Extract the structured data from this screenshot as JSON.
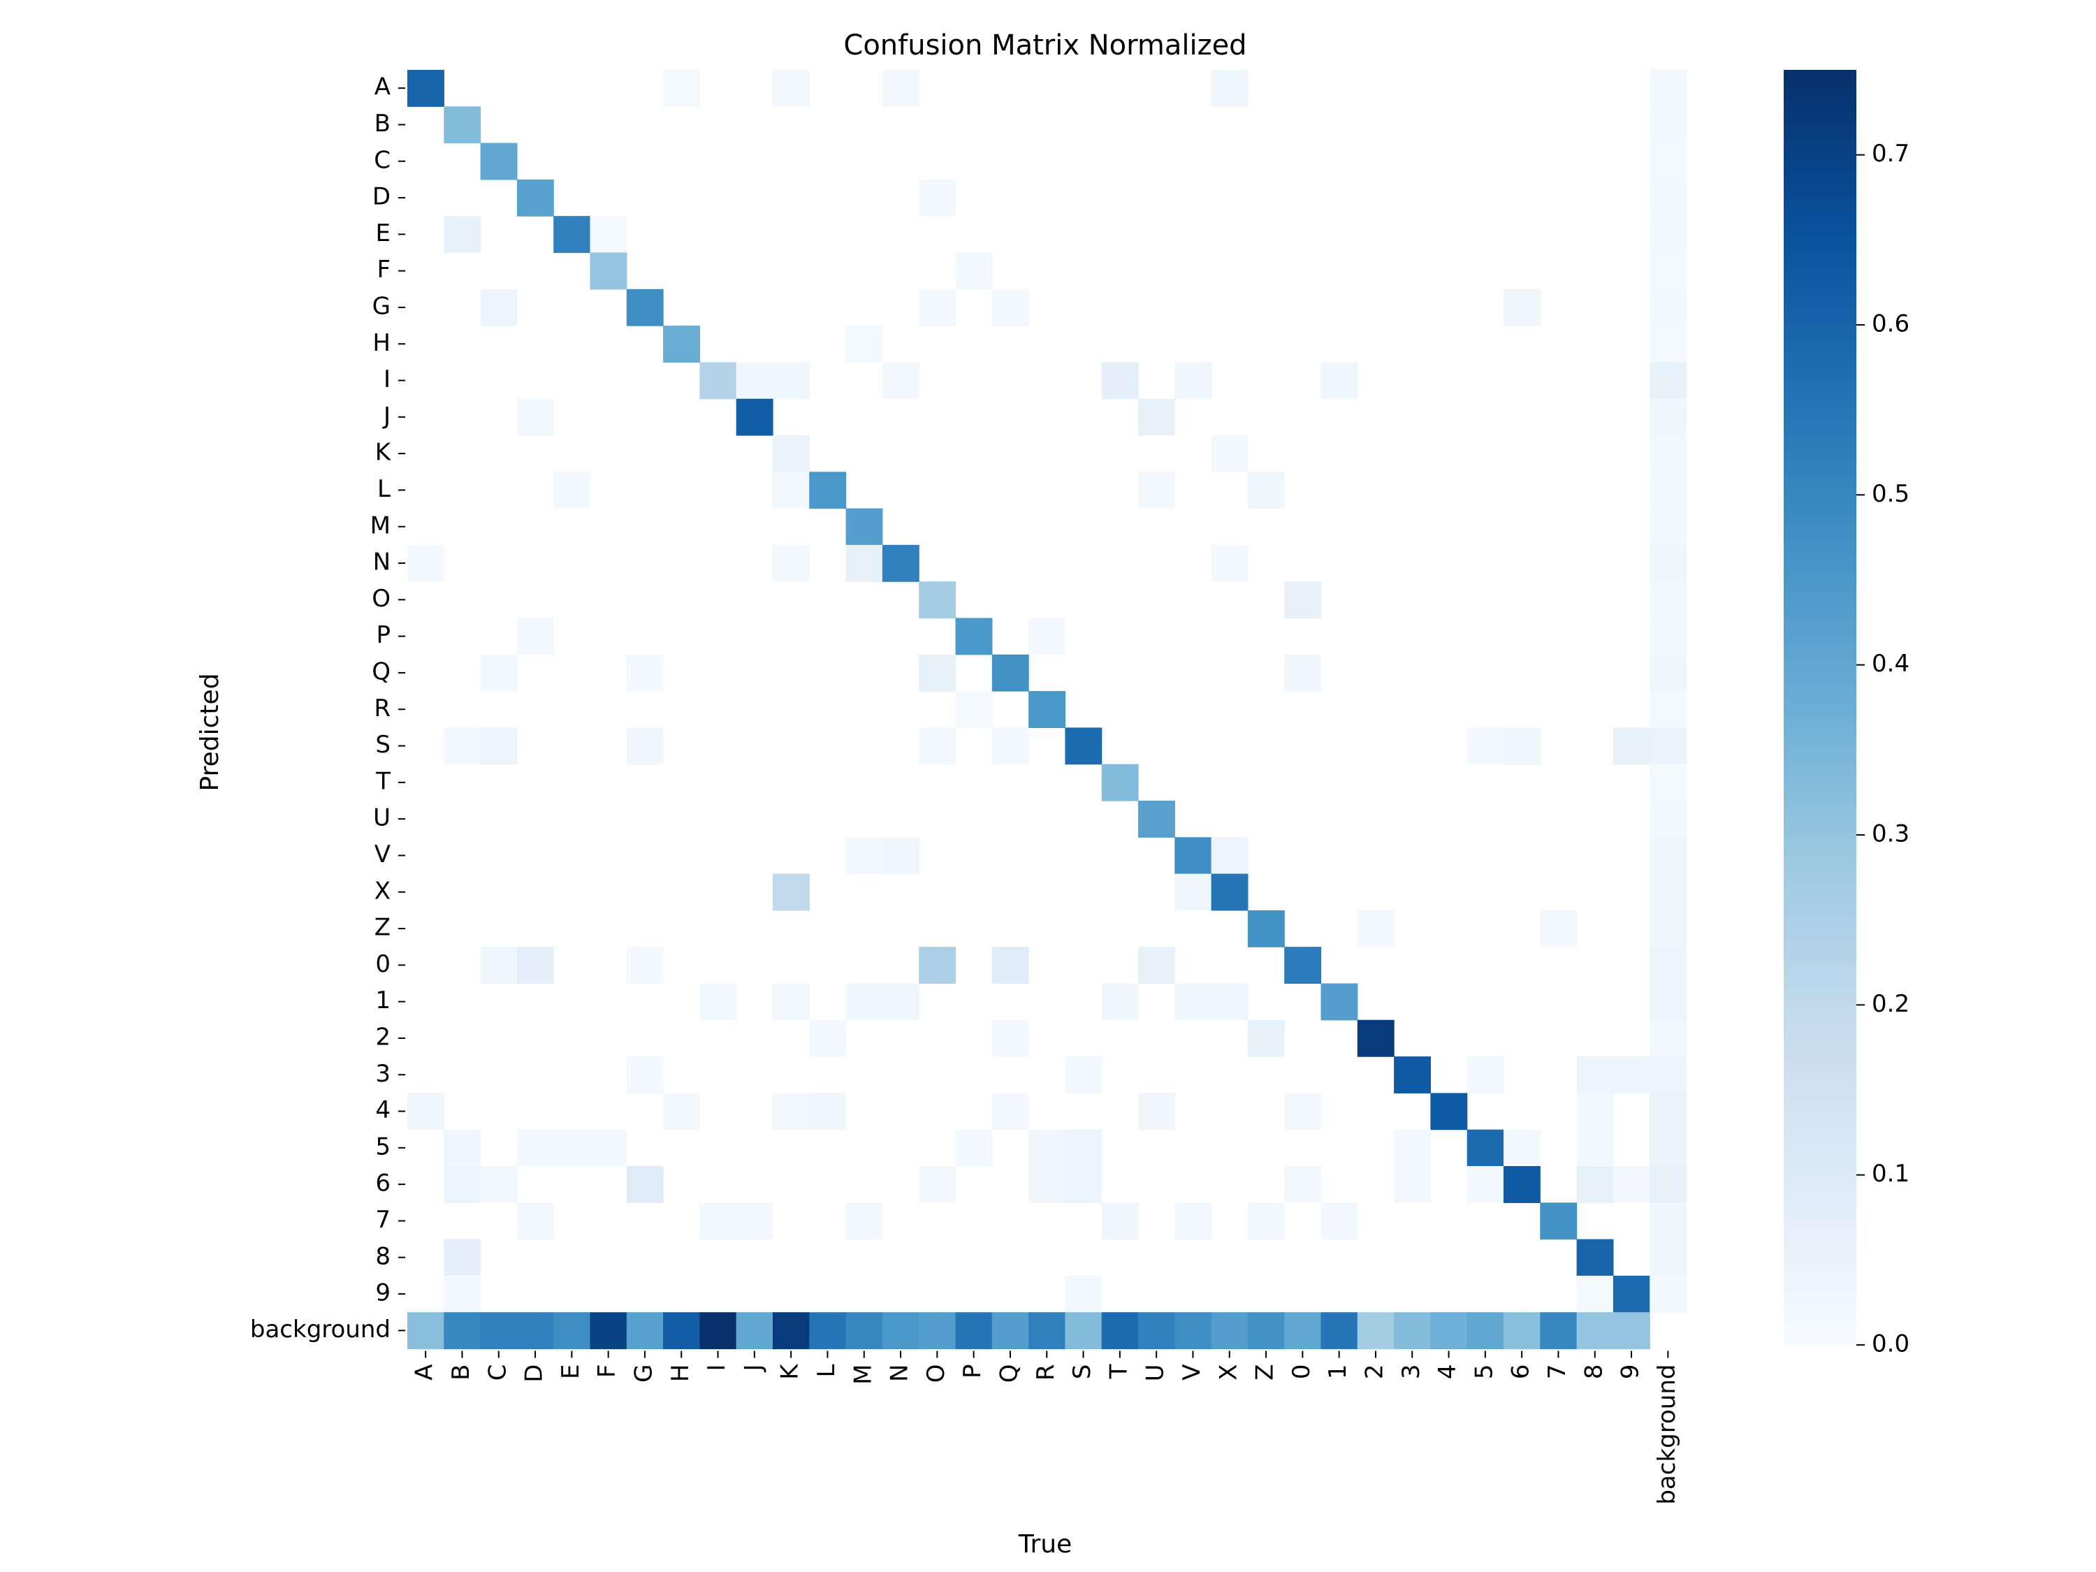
{
  "chart_data": {
    "type": "heatmap",
    "title": "Confusion Matrix Normalized",
    "xlabel": "True",
    "ylabel": "Predicted",
    "labels": [
      "A",
      "B",
      "C",
      "D",
      "E",
      "F",
      "G",
      "H",
      "I",
      "J",
      "K",
      "L",
      "M",
      "N",
      "O",
      "P",
      "Q",
      "R",
      "S",
      "T",
      "U",
      "V",
      "X",
      "Z",
      "0",
      "1",
      "2",
      "3",
      "4",
      "5",
      "6",
      "7",
      "8",
      "9",
      "background"
    ],
    "colorbar": {
      "range": [
        0,
        0.75
      ],
      "ticks": [
        0.0,
        0.1,
        0.2,
        0.3,
        0.4,
        0.5,
        0.6,
        0.7
      ],
      "tick_labels": [
        "0.0",
        "0.1",
        "0.2",
        "0.3",
        "0.4",
        "0.5",
        "0.6",
        "0.7"
      ],
      "colormap": "Blues",
      "stops": [
        "#f7fbff",
        "#deebf7",
        "#c6dbef",
        "#9ecae1",
        "#6baed6",
        "#4292c6",
        "#2171b5",
        "#08519c",
        "#08306b"
      ]
    },
    "diagonal": [
      0.6,
      0.33,
      0.4,
      0.42,
      0.52,
      0.3,
      0.48,
      0.38,
      0.23,
      0.62,
      0.05,
      0.45,
      0.43,
      0.52,
      0.27,
      0.45,
      0.47,
      0.45,
      0.58,
      0.33,
      0.42,
      0.48,
      0.55,
      0.47,
      0.53,
      0.43,
      0.72,
      0.63,
      0.63,
      0.58,
      0.63,
      0.47,
      0.6,
      0.58
    ],
    "off_diagonal": [
      [
        0,
        7,
        0.01
      ],
      [
        0,
        10,
        0.02
      ],
      [
        0,
        13,
        0.02
      ],
      [
        0,
        22,
        0.03
      ],
      [
        3,
        14,
        0.02
      ],
      [
        4,
        1,
        0.06
      ],
      [
        4,
        5,
        0.01
      ],
      [
        5,
        15,
        0.02
      ],
      [
        6,
        2,
        0.04
      ],
      [
        6,
        14,
        0.02
      ],
      [
        6,
        16,
        0.02
      ],
      [
        6,
        30,
        0.03
      ],
      [
        7,
        12,
        0.01
      ],
      [
        8,
        9,
        0.03
      ],
      [
        8,
        10,
        0.03
      ],
      [
        8,
        13,
        0.02
      ],
      [
        8,
        19,
        0.07
      ],
      [
        8,
        21,
        0.03
      ],
      [
        8,
        25,
        0.03
      ],
      [
        9,
        3,
        0.02
      ],
      [
        9,
        20,
        0.06
      ],
      [
        10,
        22,
        0.02
      ],
      [
        11,
        4,
        0.02
      ],
      [
        11,
        10,
        0.02
      ],
      [
        11,
        20,
        0.02
      ],
      [
        11,
        23,
        0.03
      ],
      [
        13,
        0,
        0.02
      ],
      [
        13,
        10,
        0.02
      ],
      [
        13,
        12,
        0.06
      ],
      [
        13,
        22,
        0.02
      ],
      [
        14,
        24,
        0.06
      ],
      [
        15,
        3,
        0.02
      ],
      [
        15,
        17,
        0.02
      ],
      [
        16,
        2,
        0.02
      ],
      [
        16,
        6,
        0.02
      ],
      [
        16,
        14,
        0.06
      ],
      [
        16,
        24,
        0.03
      ],
      [
        17,
        15,
        0.01
      ],
      [
        18,
        1,
        0.02
      ],
      [
        18,
        2,
        0.04
      ],
      [
        18,
        6,
        0.03
      ],
      [
        18,
        14,
        0.02
      ],
      [
        18,
        16,
        0.02
      ],
      [
        18,
        29,
        0.02
      ],
      [
        18,
        30,
        0.03
      ],
      [
        18,
        33,
        0.06
      ],
      [
        21,
        12,
        0.02
      ],
      [
        21,
        13,
        0.03
      ],
      [
        21,
        22,
        0.04
      ],
      [
        22,
        10,
        0.2
      ],
      [
        22,
        21,
        0.03
      ],
      [
        23,
        26,
        0.02
      ],
      [
        23,
        31,
        0.02
      ],
      [
        24,
        2,
        0.03
      ],
      [
        24,
        3,
        0.07
      ],
      [
        24,
        6,
        0.02
      ],
      [
        24,
        14,
        0.25
      ],
      [
        24,
        16,
        0.09
      ],
      [
        24,
        20,
        0.06
      ],
      [
        25,
        8,
        0.02
      ],
      [
        25,
        10,
        0.02
      ],
      [
        25,
        12,
        0.03
      ],
      [
        25,
        13,
        0.03
      ],
      [
        25,
        19,
        0.03
      ],
      [
        25,
        21,
        0.03
      ],
      [
        25,
        22,
        0.03
      ],
      [
        26,
        11,
        0.02
      ],
      [
        26,
        16,
        0.02
      ],
      [
        26,
        23,
        0.06
      ],
      [
        27,
        6,
        0.02
      ],
      [
        27,
        18,
        0.02
      ],
      [
        27,
        29,
        0.02
      ],
      [
        27,
        32,
        0.04
      ],
      [
        27,
        33,
        0.04
      ],
      [
        28,
        0,
        0.03
      ],
      [
        28,
        7,
        0.02
      ],
      [
        28,
        10,
        0.02
      ],
      [
        28,
        11,
        0.03
      ],
      [
        28,
        16,
        0.02
      ],
      [
        28,
        20,
        0.03
      ],
      [
        28,
        24,
        0.02
      ],
      [
        28,
        32,
        0.02
      ],
      [
        29,
        1,
        0.03
      ],
      [
        29,
        3,
        0.02
      ],
      [
        29,
        4,
        0.02
      ],
      [
        29,
        5,
        0.02
      ],
      [
        29,
        15,
        0.02
      ],
      [
        29,
        17,
        0.03
      ],
      [
        29,
        18,
        0.04
      ],
      [
        29,
        27,
        0.02
      ],
      [
        29,
        30,
        0.02
      ],
      [
        29,
        32,
        0.02
      ],
      [
        30,
        1,
        0.04
      ],
      [
        30,
        2,
        0.02
      ],
      [
        30,
        6,
        0.09
      ],
      [
        30,
        14,
        0.02
      ],
      [
        30,
        17,
        0.03
      ],
      [
        30,
        18,
        0.04
      ],
      [
        30,
        24,
        0.02
      ],
      [
        30,
        27,
        0.02
      ],
      [
        30,
        29,
        0.02
      ],
      [
        30,
        32,
        0.06
      ],
      [
        30,
        33,
        0.02
      ],
      [
        31,
        3,
        0.02
      ],
      [
        31,
        8,
        0.02
      ],
      [
        31,
        9,
        0.02
      ],
      [
        31,
        12,
        0.02
      ],
      [
        31,
        19,
        0.03
      ],
      [
        31,
        21,
        0.02
      ],
      [
        31,
        23,
        0.02
      ],
      [
        31,
        25,
        0.02
      ],
      [
        32,
        1,
        0.07
      ],
      [
        33,
        1,
        0.02
      ],
      [
        33,
        18,
        0.02
      ],
      [
        33,
        32,
        0.01
      ]
    ],
    "background_column": [
      0.02,
      0.02,
      0.01,
      0.02,
      0.02,
      0.01,
      0.02,
      0.01,
      0.06,
      0.03,
      0.02,
      0.02,
      0.02,
      0.03,
      0.02,
      0.02,
      0.03,
      0.01,
      0.05,
      0.01,
      0.02,
      0.03,
      0.03,
      0.03,
      0.04,
      0.04,
      0.02,
      0.04,
      0.05,
      0.05,
      0.06,
      0.03,
      0.03,
      0.02
    ],
    "background_row": [
      0.32,
      0.5,
      0.52,
      0.52,
      0.48,
      0.7,
      0.42,
      0.62,
      0.75,
      0.4,
      0.72,
      0.55,
      0.5,
      0.45,
      0.43,
      0.55,
      0.43,
      0.52,
      0.33,
      0.58,
      0.52,
      0.48,
      0.43,
      0.47,
      0.4,
      0.55,
      0.27,
      0.33,
      0.37,
      0.4,
      0.32,
      0.5,
      0.3,
      0.3
    ]
  }
}
